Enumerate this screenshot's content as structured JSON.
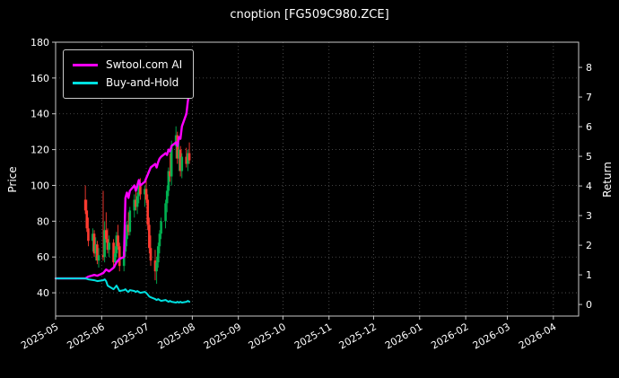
{
  "title": "cnoption [FG509C980.ZCE]",
  "legend": {
    "items": [
      {
        "label": "Swtool.com AI",
        "color": "#ff00ff"
      },
      {
        "label": "Buy-and-Hold",
        "color": "#00e0e0"
      }
    ]
  },
  "chart_data": {
    "type": "candlestick+line",
    "title": "cnoption [FG509C980.ZCE]",
    "grid": {
      "on": true,
      "style": "dotted",
      "color": "#5a5a5a"
    },
    "colors": {
      "up": "#00b050",
      "down": "#ff3b30",
      "background": "#000000",
      "text": "#ffffff"
    },
    "x_axis": {
      "range": [
        "2025-05-01",
        "2026-04-18"
      ],
      "ticks": [
        {
          "date": "2025-05-01",
          "label": "2025-05"
        },
        {
          "date": "2025-06-01",
          "label": "2025-06"
        },
        {
          "date": "2025-07-01",
          "label": "2025-07"
        },
        {
          "date": "2025-08-01",
          "label": "2025-08"
        },
        {
          "date": "2025-09-01",
          "label": "2025-09"
        },
        {
          "date": "2025-10-01",
          "label": "2025-10"
        },
        {
          "date": "2025-11-01",
          "label": "2025-11"
        },
        {
          "date": "2025-12-01",
          "label": "2025-12"
        },
        {
          "date": "2026-01-01",
          "label": "2026-01"
        },
        {
          "date": "2026-02-01",
          "label": "2026-02"
        },
        {
          "date": "2026-03-01",
          "label": "2026-03"
        },
        {
          "date": "2026-04-01",
          "label": "2026-04"
        }
      ]
    },
    "price_axis": {
      "label": "Price",
      "min": 27,
      "max": 180,
      "ticks": [
        40,
        60,
        80,
        100,
        120,
        140,
        160,
        180
      ]
    },
    "return_axis": {
      "label": "Return",
      "min": -0.39,
      "max": 8.85,
      "ticks": [
        0,
        1,
        2,
        3,
        4,
        5,
        6,
        7,
        8
      ]
    },
    "candles": [
      {
        "d": "2025-05-21",
        "o": 92,
        "h": 100,
        "l": 84,
        "c": 86
      },
      {
        "d": "2025-05-22",
        "o": 86,
        "h": 92,
        "l": 74,
        "c": 76
      },
      {
        "d": "2025-05-23",
        "o": 76,
        "h": 82,
        "l": 66,
        "c": 69
      },
      {
        "d": "2025-05-26",
        "o": 69,
        "h": 76,
        "l": 63,
        "c": 73
      },
      {
        "d": "2025-05-27",
        "o": 73,
        "h": 75,
        "l": 60,
        "c": 62
      },
      {
        "d": "2025-05-28",
        "o": 62,
        "h": 71,
        "l": 58,
        "c": 67
      },
      {
        "d": "2025-05-29",
        "o": 67,
        "h": 69,
        "l": 56,
        "c": 58
      },
      {
        "d": "2025-05-30",
        "o": 58,
        "h": 65,
        "l": 54,
        "c": 61
      },
      {
        "d": "2025-06-02",
        "o": 61,
        "h": 97,
        "l": 58,
        "c": 60
      },
      {
        "d": "2025-06-03",
        "o": 60,
        "h": 80,
        "l": 57,
        "c": 75
      },
      {
        "d": "2025-06-04",
        "o": 75,
        "h": 85,
        "l": 68,
        "c": 70
      },
      {
        "d": "2025-06-05",
        "o": 70,
        "h": 76,
        "l": 62,
        "c": 64
      },
      {
        "d": "2025-06-06",
        "o": 64,
        "h": 72,
        "l": 60,
        "c": 68
      },
      {
        "d": "2025-06-09",
        "o": 68,
        "h": 70,
        "l": 55,
        "c": 57
      },
      {
        "d": "2025-06-10",
        "o": 57,
        "h": 66,
        "l": 54,
        "c": 62
      },
      {
        "d": "2025-06-11",
        "o": 62,
        "h": 74,
        "l": 60,
        "c": 72
      },
      {
        "d": "2025-06-12",
        "o": 72,
        "h": 78,
        "l": 64,
        "c": 66
      },
      {
        "d": "2025-06-13",
        "o": 66,
        "h": 68,
        "l": 52,
        "c": 55
      },
      {
        "d": "2025-06-16",
        "o": 55,
        "h": 65,
        "l": 52,
        "c": 63
      },
      {
        "d": "2025-06-17",
        "o": 63,
        "h": 72,
        "l": 60,
        "c": 70
      },
      {
        "d": "2025-06-18",
        "o": 70,
        "h": 80,
        "l": 66,
        "c": 78
      },
      {
        "d": "2025-06-19",
        "o": 78,
        "h": 85,
        "l": 72,
        "c": 74
      },
      {
        "d": "2025-06-20",
        "o": 74,
        "h": 88,
        "l": 72,
        "c": 86
      },
      {
        "d": "2025-06-23",
        "o": 86,
        "h": 95,
        "l": 82,
        "c": 92
      },
      {
        "d": "2025-06-24",
        "o": 92,
        "h": 98,
        "l": 86,
        "c": 88
      },
      {
        "d": "2025-06-25",
        "o": 88,
        "h": 96,
        "l": 84,
        "c": 94
      },
      {
        "d": "2025-06-26",
        "o": 94,
        "h": 102,
        "l": 90,
        "c": 100
      },
      {
        "d": "2025-06-27",
        "o": 100,
        "h": 104,
        "l": 92,
        "c": 95
      },
      {
        "d": "2025-06-30",
        "o": 95,
        "h": 100,
        "l": 88,
        "c": 98
      },
      {
        "d": "2025-07-01",
        "o": 98,
        "h": 105,
        "l": 90,
        "c": 92
      },
      {
        "d": "2025-07-02",
        "o": 92,
        "h": 95,
        "l": 75,
        "c": 78
      },
      {
        "d": "2025-07-03",
        "o": 78,
        "h": 82,
        "l": 62,
        "c": 65
      },
      {
        "d": "2025-07-04",
        "o": 65,
        "h": 72,
        "l": 55,
        "c": 58
      },
      {
        "d": "2025-07-07",
        "o": 58,
        "h": 64,
        "l": 47,
        "c": 52
      },
      {
        "d": "2025-07-08",
        "o": 52,
        "h": 60,
        "l": 45,
        "c": 57
      },
      {
        "d": "2025-07-09",
        "o": 57,
        "h": 68,
        "l": 54,
        "c": 66
      },
      {
        "d": "2025-07-10",
        "o": 66,
        "h": 75,
        "l": 62,
        "c": 73
      },
      {
        "d": "2025-07-11",
        "o": 73,
        "h": 82,
        "l": 70,
        "c": 80
      },
      {
        "d": "2025-07-14",
        "o": 80,
        "h": 92,
        "l": 76,
        "c": 90
      },
      {
        "d": "2025-07-15",
        "o": 90,
        "h": 100,
        "l": 85,
        "c": 97
      },
      {
        "d": "2025-07-16",
        "o": 97,
        "h": 110,
        "l": 94,
        "c": 108
      },
      {
        "d": "2025-07-17",
        "o": 108,
        "h": 118,
        "l": 102,
        "c": 105
      },
      {
        "d": "2025-07-18",
        "o": 105,
        "h": 125,
        "l": 100,
        "c": 122
      },
      {
        "d": "2025-07-21",
        "o": 122,
        "h": 133,
        "l": 115,
        "c": 128
      },
      {
        "d": "2025-07-22",
        "o": 128,
        "h": 130,
        "l": 112,
        "c": 115
      },
      {
        "d": "2025-07-23",
        "o": 115,
        "h": 124,
        "l": 108,
        "c": 120
      },
      {
        "d": "2025-07-24",
        "o": 120,
        "h": 122,
        "l": 105,
        "c": 108
      },
      {
        "d": "2025-07-25",
        "o": 108,
        "h": 118,
        "l": 104,
        "c": 116
      },
      {
        "d": "2025-07-28",
        "o": 116,
        "h": 121,
        "l": 110,
        "c": 112
      },
      {
        "d": "2025-07-29",
        "o": 112,
        "h": 120,
        "l": 108,
        "c": 118
      },
      {
        "d": "2025-07-30",
        "o": 118,
        "h": 124,
        "l": 112,
        "c": 114
      }
    ],
    "series": [
      {
        "name": "Swtool.com AI",
        "color": "#ff00ff",
        "axis": "price",
        "points": [
          [
            "2025-05-01",
            48
          ],
          [
            "2025-05-08",
            48
          ],
          [
            "2025-05-15",
            48
          ],
          [
            "2025-05-21",
            48
          ],
          [
            "2025-05-23",
            49
          ],
          [
            "2025-05-27",
            50
          ],
          [
            "2025-05-29",
            49.5
          ],
          [
            "2025-06-02",
            51
          ],
          [
            "2025-06-04",
            53
          ],
          [
            "2025-06-06",
            52
          ],
          [
            "2025-06-09",
            54
          ],
          [
            "2025-06-11",
            57
          ],
          [
            "2025-06-13",
            59
          ],
          [
            "2025-06-16",
            60
          ],
          [
            "2025-06-17",
            93
          ],
          [
            "2025-06-18",
            96
          ],
          [
            "2025-06-19",
            93
          ],
          [
            "2025-06-20",
            97
          ],
          [
            "2025-06-23",
            100
          ],
          [
            "2025-06-24",
            97
          ],
          [
            "2025-06-25",
            100
          ],
          [
            "2025-06-26",
            103
          ],
          [
            "2025-06-27",
            100
          ],
          [
            "2025-06-30",
            102
          ],
          [
            "2025-07-01",
            104
          ],
          [
            "2025-07-02",
            106
          ],
          [
            "2025-07-03",
            108
          ],
          [
            "2025-07-04",
            110
          ],
          [
            "2025-07-07",
            112
          ],
          [
            "2025-07-08",
            110
          ],
          [
            "2025-07-09",
            113
          ],
          [
            "2025-07-10",
            115
          ],
          [
            "2025-07-11",
            116
          ],
          [
            "2025-07-14",
            118
          ],
          [
            "2025-07-15",
            117
          ],
          [
            "2025-07-16",
            120
          ],
          [
            "2025-07-17",
            119
          ],
          [
            "2025-07-18",
            122
          ],
          [
            "2025-07-21",
            124
          ],
          [
            "2025-07-22",
            122
          ],
          [
            "2025-07-23",
            127
          ],
          [
            "2025-07-24",
            126
          ],
          [
            "2025-07-25",
            133
          ],
          [
            "2025-07-28",
            140
          ],
          [
            "2025-07-29",
            147
          ],
          [
            "2025-07-30",
            152
          ]
        ]
      },
      {
        "name": "Buy-and-Hold",
        "color": "#00e0e0",
        "axis": "price",
        "points": [
          [
            "2025-05-01",
            48
          ],
          [
            "2025-05-08",
            48
          ],
          [
            "2025-05-15",
            48
          ],
          [
            "2025-05-21",
            48
          ],
          [
            "2025-05-23",
            47.5
          ],
          [
            "2025-05-27",
            47
          ],
          [
            "2025-05-29",
            46.5
          ],
          [
            "2025-06-02",
            47
          ],
          [
            "2025-06-03",
            47.5
          ],
          [
            "2025-06-04",
            46.5
          ],
          [
            "2025-06-05",
            44
          ],
          [
            "2025-06-06",
            43.5
          ],
          [
            "2025-06-09",
            42
          ],
          [
            "2025-06-10",
            43
          ],
          [
            "2025-06-11",
            44
          ],
          [
            "2025-06-12",
            42.5
          ],
          [
            "2025-06-13",
            41
          ],
          [
            "2025-06-16",
            41.5
          ],
          [
            "2025-06-17",
            42
          ],
          [
            "2025-06-18",
            41
          ],
          [
            "2025-06-19",
            40.5
          ],
          [
            "2025-06-20",
            41.5
          ],
          [
            "2025-06-23",
            41
          ],
          [
            "2025-06-24",
            40.5
          ],
          [
            "2025-06-25",
            41
          ],
          [
            "2025-06-26",
            40.5
          ],
          [
            "2025-06-27",
            40
          ],
          [
            "2025-06-30",
            40.5
          ],
          [
            "2025-07-01",
            40
          ],
          [
            "2025-07-02",
            39
          ],
          [
            "2025-07-03",
            38
          ],
          [
            "2025-07-04",
            37.5
          ],
          [
            "2025-07-07",
            36.5
          ],
          [
            "2025-07-08",
            36
          ],
          [
            "2025-07-09",
            36.5
          ],
          [
            "2025-07-10",
            36
          ],
          [
            "2025-07-11",
            35.5
          ],
          [
            "2025-07-14",
            36
          ],
          [
            "2025-07-15",
            35.5
          ],
          [
            "2025-07-16",
            35
          ],
          [
            "2025-07-17",
            35.5
          ],
          [
            "2025-07-18",
            35
          ],
          [
            "2025-07-21",
            34.5
          ],
          [
            "2025-07-22",
            35
          ],
          [
            "2025-07-23",
            34.5
          ],
          [
            "2025-07-24",
            35
          ],
          [
            "2025-07-25",
            34.5
          ],
          [
            "2025-07-28",
            35
          ],
          [
            "2025-07-29",
            35.5
          ],
          [
            "2025-07-30",
            35
          ]
        ]
      }
    ]
  }
}
